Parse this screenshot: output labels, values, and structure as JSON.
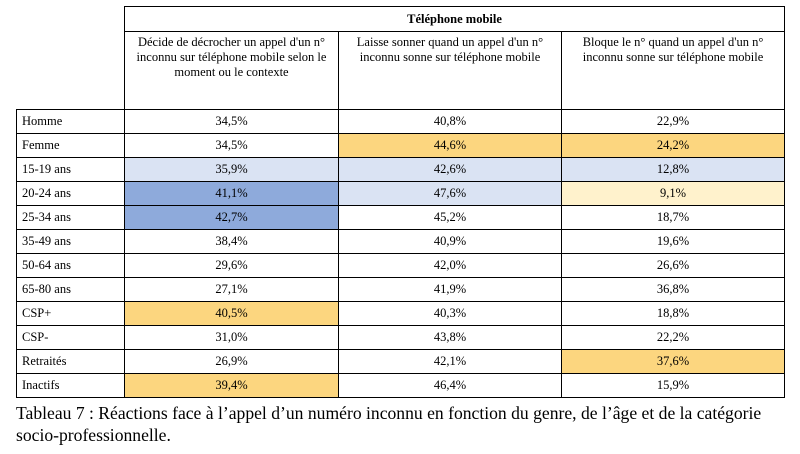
{
  "table": {
    "group_header": "Téléphone mobile",
    "column_headers": [
      "Décide de décrocher un appel d'un n° inconnu sur téléphone mobile selon le moment ou le contexte",
      "Laisse sonner quand un appel d'un n° inconnu sonne sur téléphone mobile",
      "Bloque le n° quand un appel d'un n° inconnu sonne sur téléphone mobile"
    ],
    "highlight_colors": {
      "orange": "#fcd67f",
      "light_blue": "#dae3f3",
      "blue": "#8eaadb",
      "light_orange": "#fff2cc"
    },
    "rows": [
      {
        "label": "Homme",
        "values": [
          "34,5%",
          "40,8%",
          "22,9%"
        ],
        "colors": [
          "",
          "",
          ""
        ]
      },
      {
        "label": "Femme",
        "values": [
          "34,5%",
          "44,6%",
          "24,2%"
        ],
        "colors": [
          "",
          "#fcd67f",
          "#fcd67f"
        ]
      },
      {
        "label": "15-19 ans",
        "values": [
          "35,9%",
          "42,6%",
          "12,8%"
        ],
        "colors": [
          "#dae3f3",
          "#dae3f3",
          "#dae3f3"
        ]
      },
      {
        "label": "20-24 ans",
        "values": [
          "41,1%",
          "47,6%",
          "9,1%"
        ],
        "colors": [
          "#8eaadb",
          "#dae3f3",
          "#fff2cc"
        ]
      },
      {
        "label": "25-34 ans",
        "values": [
          "42,7%",
          "45,2%",
          "18,7%"
        ],
        "colors": [
          "#8eaadb",
          "",
          ""
        ]
      },
      {
        "label": "35-49 ans",
        "values": [
          "38,4%",
          "40,9%",
          "19,6%"
        ],
        "colors": [
          "",
          "",
          ""
        ]
      },
      {
        "label": "50-64 ans",
        "values": [
          "29,6%",
          "42,0%",
          "26,6%"
        ],
        "colors": [
          "",
          "",
          ""
        ]
      },
      {
        "label": "65-80 ans",
        "values": [
          "27,1%",
          "41,9%",
          "36,8%"
        ],
        "colors": [
          "",
          "",
          ""
        ]
      },
      {
        "label": "CSP+",
        "values": [
          "40,5%",
          "40,3%",
          "18,8%"
        ],
        "colors": [
          "#fcd67f",
          "",
          ""
        ]
      },
      {
        "label": "CSP-",
        "values": [
          "31,0%",
          "43,8%",
          "22,2%"
        ],
        "colors": [
          "",
          "",
          ""
        ]
      },
      {
        "label": "Retraités",
        "values": [
          "26,9%",
          "42,1%",
          "37,6%"
        ],
        "colors": [
          "",
          "",
          "#fcd67f"
        ]
      },
      {
        "label": "Inactifs",
        "values": [
          "39,4%",
          "46,4%",
          "15,9%"
        ],
        "colors": [
          "#fcd67f",
          "",
          ""
        ]
      }
    ]
  },
  "caption": "Tableau 7 : Réactions face à l’appel d’un numéro inconnu en fonction du genre, de l’âge et de la catégorie socio-professionnelle."
}
